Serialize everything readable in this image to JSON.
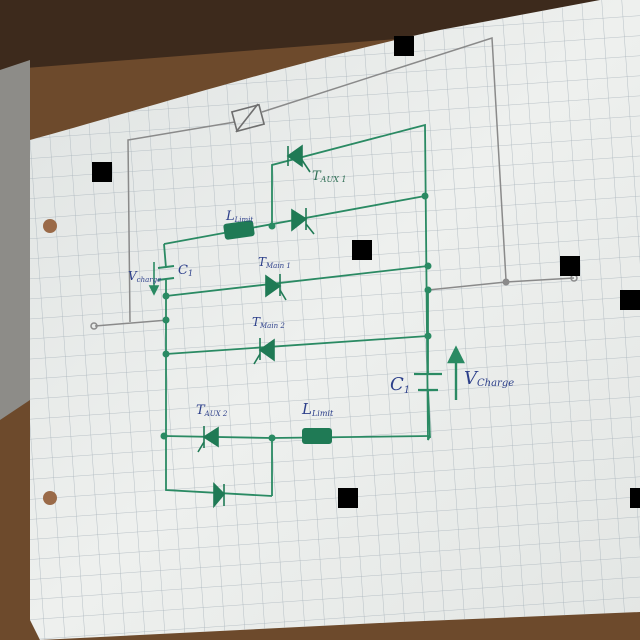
{
  "photo": {
    "subject": "hand-drawn-circuit-on-graph-paper",
    "ink_color": "#2a8a63",
    "pencil_color": "#8a8a8a",
    "label_color": "#2c3f8a"
  },
  "labels": {
    "t_aux1": "T",
    "t_aux1_sub": "AUX 1",
    "l_limit_top": "L",
    "l_limit_top_sub": "Limit",
    "v_charge_left": "V",
    "v_charge_left_sub": "charge",
    "c1_left": "C",
    "c1_left_sub": "1",
    "t_main1": "T",
    "t_main1_sub": "Main 1",
    "t_main2": "T",
    "t_main2_sub": "Main 2",
    "c1_right": "C",
    "c1_right_sub": "1",
    "v_charge_right": "V",
    "v_charge_right_sub": "Charge",
    "t_aux2": "T",
    "t_aux2_sub": "AUX 2",
    "l_limit_bottom": "L",
    "l_limit_bottom_sub": "Limit"
  }
}
